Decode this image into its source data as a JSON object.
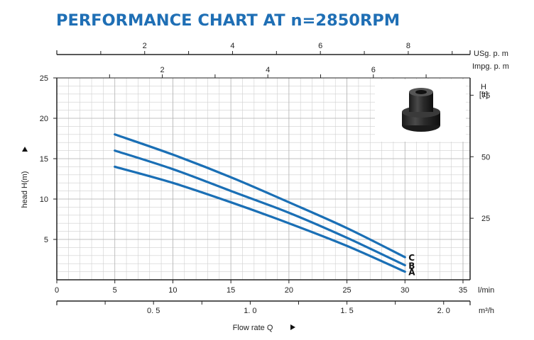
{
  "chart_data": {
    "type": "line",
    "title": "PERFORMANCE CHART AT n=2850RPM",
    "xlabel": "Flow rate Q",
    "ylabel": "head H(m)",
    "x_unit": "l/min",
    "xlim": [
      0,
      36
    ],
    "ylim": [
      0,
      25
    ],
    "x_ticks": [
      0,
      5,
      10,
      15,
      20,
      25,
      30,
      35
    ],
    "y_ticks": [
      5,
      10,
      15,
      20,
      25
    ],
    "grid": true,
    "series": [
      {
        "name": "A",
        "x": [
          5,
          10,
          15,
          20,
          25,
          30
        ],
        "y": [
          14,
          12,
          9.6,
          7,
          4.2,
          1
        ]
      },
      {
        "name": "B",
        "x": [
          5,
          10,
          15,
          20,
          25,
          30
        ],
        "y": [
          16,
          13.7,
          11,
          8.3,
          5.2,
          1.8
        ]
      },
      {
        "name": "C",
        "x": [
          5,
          10,
          15,
          20,
          25,
          30
        ],
        "y": [
          18,
          15.5,
          12.7,
          9.6,
          6.4,
          2.8
        ]
      }
    ],
    "secondary_axes": {
      "usgpm": {
        "unit": "USg. p. m",
        "ticks": [
          2,
          4,
          6,
          8
        ],
        "per_lpm": 0.264172
      },
      "impgpm": {
        "unit": "Impg. p. m",
        "ticks": [
          2,
          4,
          6
        ],
        "per_lpm": 0.219969
      },
      "m3h": {
        "unit": "m³/h",
        "ticks": [
          "0. 5",
          "1. 0",
          "1. 5",
          "2. 0"
        ],
        "values": [
          0.5,
          1.0,
          1.5,
          2.0
        ],
        "per_lpm": 0.06
      },
      "feet": {
        "unit_top": "H",
        "unit_bottom": "[ft]",
        "ticks": [
          25,
          50,
          75
        ],
        "per_m": 3.28084
      }
    }
  },
  "colors": {
    "curve": "#1a6fb5",
    "grid": "#cfcfcf",
    "axis": "#222222"
  }
}
